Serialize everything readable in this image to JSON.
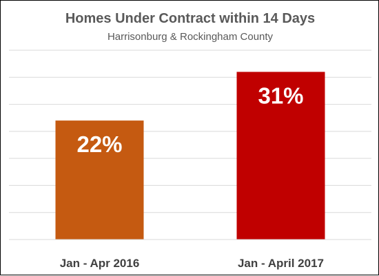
{
  "chart_data": {
    "type": "bar",
    "title": "Homes Under Contract within 14 Days",
    "subtitle": "Harrisonburg & Rockingham County",
    "categories": [
      "Jan - Apr 2016",
      "Jan - April 2017"
    ],
    "values": [
      22,
      31
    ],
    "data_labels": [
      "22%",
      "31%"
    ],
    "unit": "%",
    "ylim": [
      0,
      35
    ],
    "grid": true,
    "gridline_step": 5,
    "legend": "none",
    "colors": [
      "#c55a11",
      "#c00000"
    ]
  }
}
